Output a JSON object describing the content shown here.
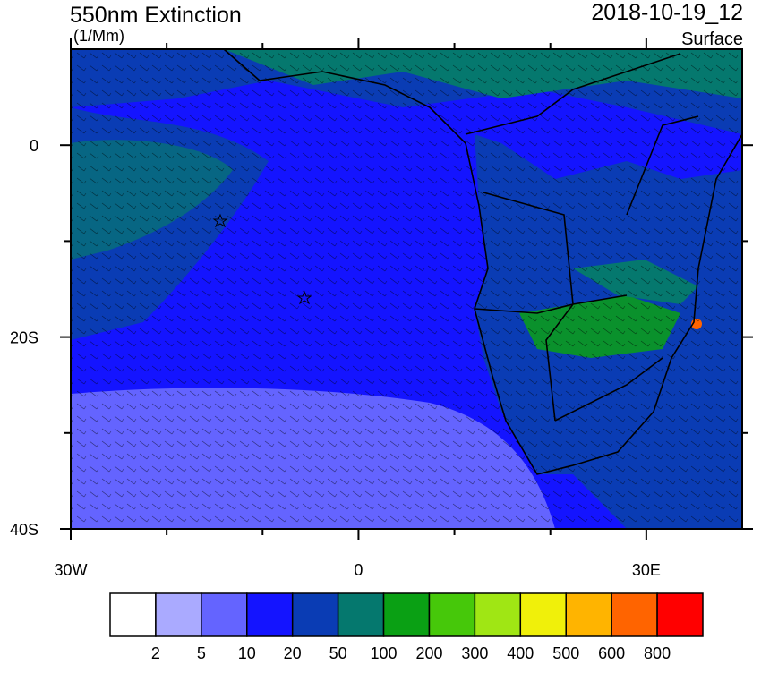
{
  "header": {
    "title": "550nm Extinction",
    "units": "(1/Mm)",
    "date": "2018-10-19_12",
    "level": "Surface"
  },
  "map": {
    "xlim": [
      -30,
      40
    ],
    "ylim": [
      -40,
      10
    ],
    "xticks": [
      {
        "value": -30,
        "label": "30W"
      },
      0,
      {
        "value": 30,
        "label": "30E"
      }
    ],
    "xminor": [
      -20,
      -10,
      10,
      20
    ],
    "yticks": [
      0,
      {
        "value": -20,
        "label": "20S"
      },
      {
        "value": -40,
        "label": "40S"
      }
    ],
    "yminor": [
      -10,
      -30
    ]
  },
  "colorbar": {
    "colors": [
      "#ffffff",
      "#aaaaff",
      "#6464ff",
      "#1414ff",
      "#0a3cb4",
      "#05786e",
      "#0aa014",
      "#46c80a",
      "#a0e614",
      "#f0f00a",
      "#ffb400",
      "#ff6400",
      "#ff0000"
    ],
    "levels": [
      2,
      5,
      10,
      20,
      50,
      100,
      200,
      300,
      400,
      500,
      600,
      800
    ]
  }
}
